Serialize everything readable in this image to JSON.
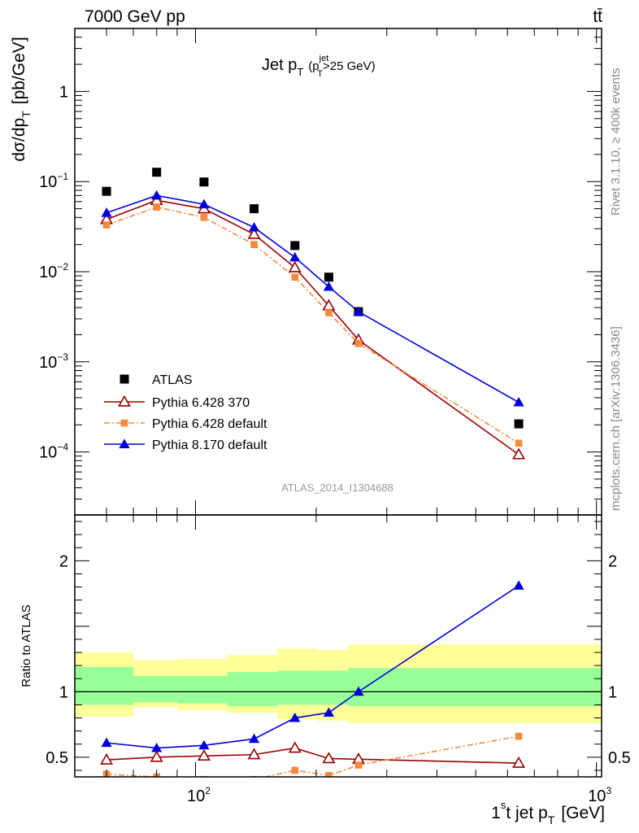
{
  "header": {
    "energy": "7000 GeV pp",
    "process": "tt̄"
  },
  "side": {
    "rivet": "Rivet 3.1.10, ≥ 400k events",
    "mcplots": "mcplots.cern.ch [arXiv:1306.3436]"
  },
  "chart_data": {
    "type": "scatter",
    "title": "Jet p_T (p_T^jet>25 GeV)",
    "title_parts": {
      "main": "Jet p",
      "sub": "T",
      "paren_open": "(p",
      "sup": "jet",
      "sub2": "T",
      "cut": ">25 GeV)"
    },
    "analysis_id": "ATLAS_2014_I1304688",
    "xlabel": "1st jet p_T [GeV]",
    "xlabel_parts": {
      "pre": "1",
      "sup": "s",
      "mid": "t jet p",
      "sub": "T",
      "unit": "[GeV]"
    },
    "xscale": "log",
    "xlim": [
      50,
      1030
    ],
    "x_tick_labels": [
      {
        "value": 100,
        "base": "10",
        "exp": "2"
      },
      {
        "value": 1000,
        "base": "10",
        "exp": "3"
      }
    ],
    "main_panel": {
      "ylabel": "dσ/dp_T [pb/GeV]",
      "ylabel_parts": {
        "main": "dσ/dp",
        "sub": "T",
        "unit": "[pb/GeV]"
      },
      "yscale": "log",
      "ylim": [
        2e-05,
        5.0
      ],
      "y_tick_labels": [
        {
          "value": 1,
          "text": "1"
        },
        {
          "value": 0.1,
          "base": "10",
          "exp": "−1"
        },
        {
          "value": 0.01,
          "base": "10",
          "exp": "−2"
        },
        {
          "value": 0.001,
          "base": "10",
          "exp": "−3"
        },
        {
          "value": 0.0001,
          "base": "10",
          "exp": "−4"
        }
      ],
      "x": [
        60,
        80,
        105,
        140,
        177,
        215,
        255,
        640
      ],
      "series": [
        {
          "name": "ATLAS",
          "color": "#000000",
          "marker": "square",
          "line": "none",
          "values": [
            0.078,
            0.127,
            0.099,
            0.05,
            0.0195,
            0.0087,
            0.0036,
            0.000205
          ]
        },
        {
          "name": "Pythia 6.428 370",
          "color": "#990000",
          "marker": "open-triangle",
          "line": "solid",
          "values": [
            0.038,
            0.062,
            0.05,
            0.026,
            0.0111,
            0.0042,
            0.00175,
            9.35e-05
          ]
        },
        {
          "name": "Pythia 6.428 default",
          "color": "#f48a3c",
          "marker": "small-square",
          "line": "dashdot",
          "values": [
            0.033,
            0.052,
            0.04,
            0.02,
            0.0087,
            0.0035,
            0.0016,
            0.000125
          ]
        },
        {
          "name": "Pythia 8.170 default",
          "color": "#0000dd",
          "marker": "filled-triangle",
          "line": "solid",
          "values": [
            0.045,
            0.07,
            0.056,
            0.031,
            0.0144,
            0.0068,
            0.0036,
            0.000355
          ]
        }
      ]
    },
    "ratio_panel": {
      "ylabel": "Ratio to ATLAS",
      "ylim": [
        0.35,
        2.35
      ],
      "y_tick_labels": [
        {
          "value": 0.5,
          "text": "0.5"
        },
        {
          "value": 1,
          "text": "1"
        },
        {
          "value": 2,
          "text": "2"
        }
      ],
      "bins": [
        {
          "lo": 50,
          "hi": 70,
          "inner": [
            0.9,
            1.19
          ],
          "outer": [
            0.81,
            1.3
          ]
        },
        {
          "lo": 70,
          "hi": 90,
          "inner": [
            0.92,
            1.12
          ],
          "outer": [
            0.88,
            1.24
          ]
        },
        {
          "lo": 90,
          "hi": 120,
          "inner": [
            0.91,
            1.12
          ],
          "outer": [
            0.86,
            1.25
          ]
        },
        {
          "lo": 120,
          "hi": 160,
          "inner": [
            0.89,
            1.15
          ],
          "outer": [
            0.84,
            1.28
          ]
        },
        {
          "lo": 160,
          "hi": 200,
          "inner": [
            0.9,
            1.16
          ],
          "outer": [
            0.79,
            1.33
          ]
        },
        {
          "lo": 200,
          "hi": 240,
          "inner": [
            0.9,
            1.16
          ],
          "outer": [
            0.78,
            1.32
          ]
        },
        {
          "lo": 240,
          "hi": 1030,
          "inner": [
            0.89,
            1.18
          ],
          "outer": [
            0.76,
            1.36
          ]
        }
      ],
      "x": [
        60,
        80,
        105,
        140,
        177,
        215,
        255,
        640
      ],
      "series": [
        {
          "name": "Pythia 6.428 370",
          "values": [
            0.48,
            0.5,
            0.51,
            0.52,
            0.57,
            0.49,
            0.485,
            0.455
          ]
        },
        {
          "name": "Pythia 6.428 default",
          "values": [
            0.37,
            0.35,
            0.33,
            0.33,
            0.4,
            0.36,
            0.44,
            0.66
          ]
        },
        {
          "name": "Pythia 8.170 default",
          "values": [
            0.61,
            0.57,
            0.59,
            0.64,
            0.8,
            0.84,
            1.0,
            1.81
          ]
        }
      ]
    }
  }
}
